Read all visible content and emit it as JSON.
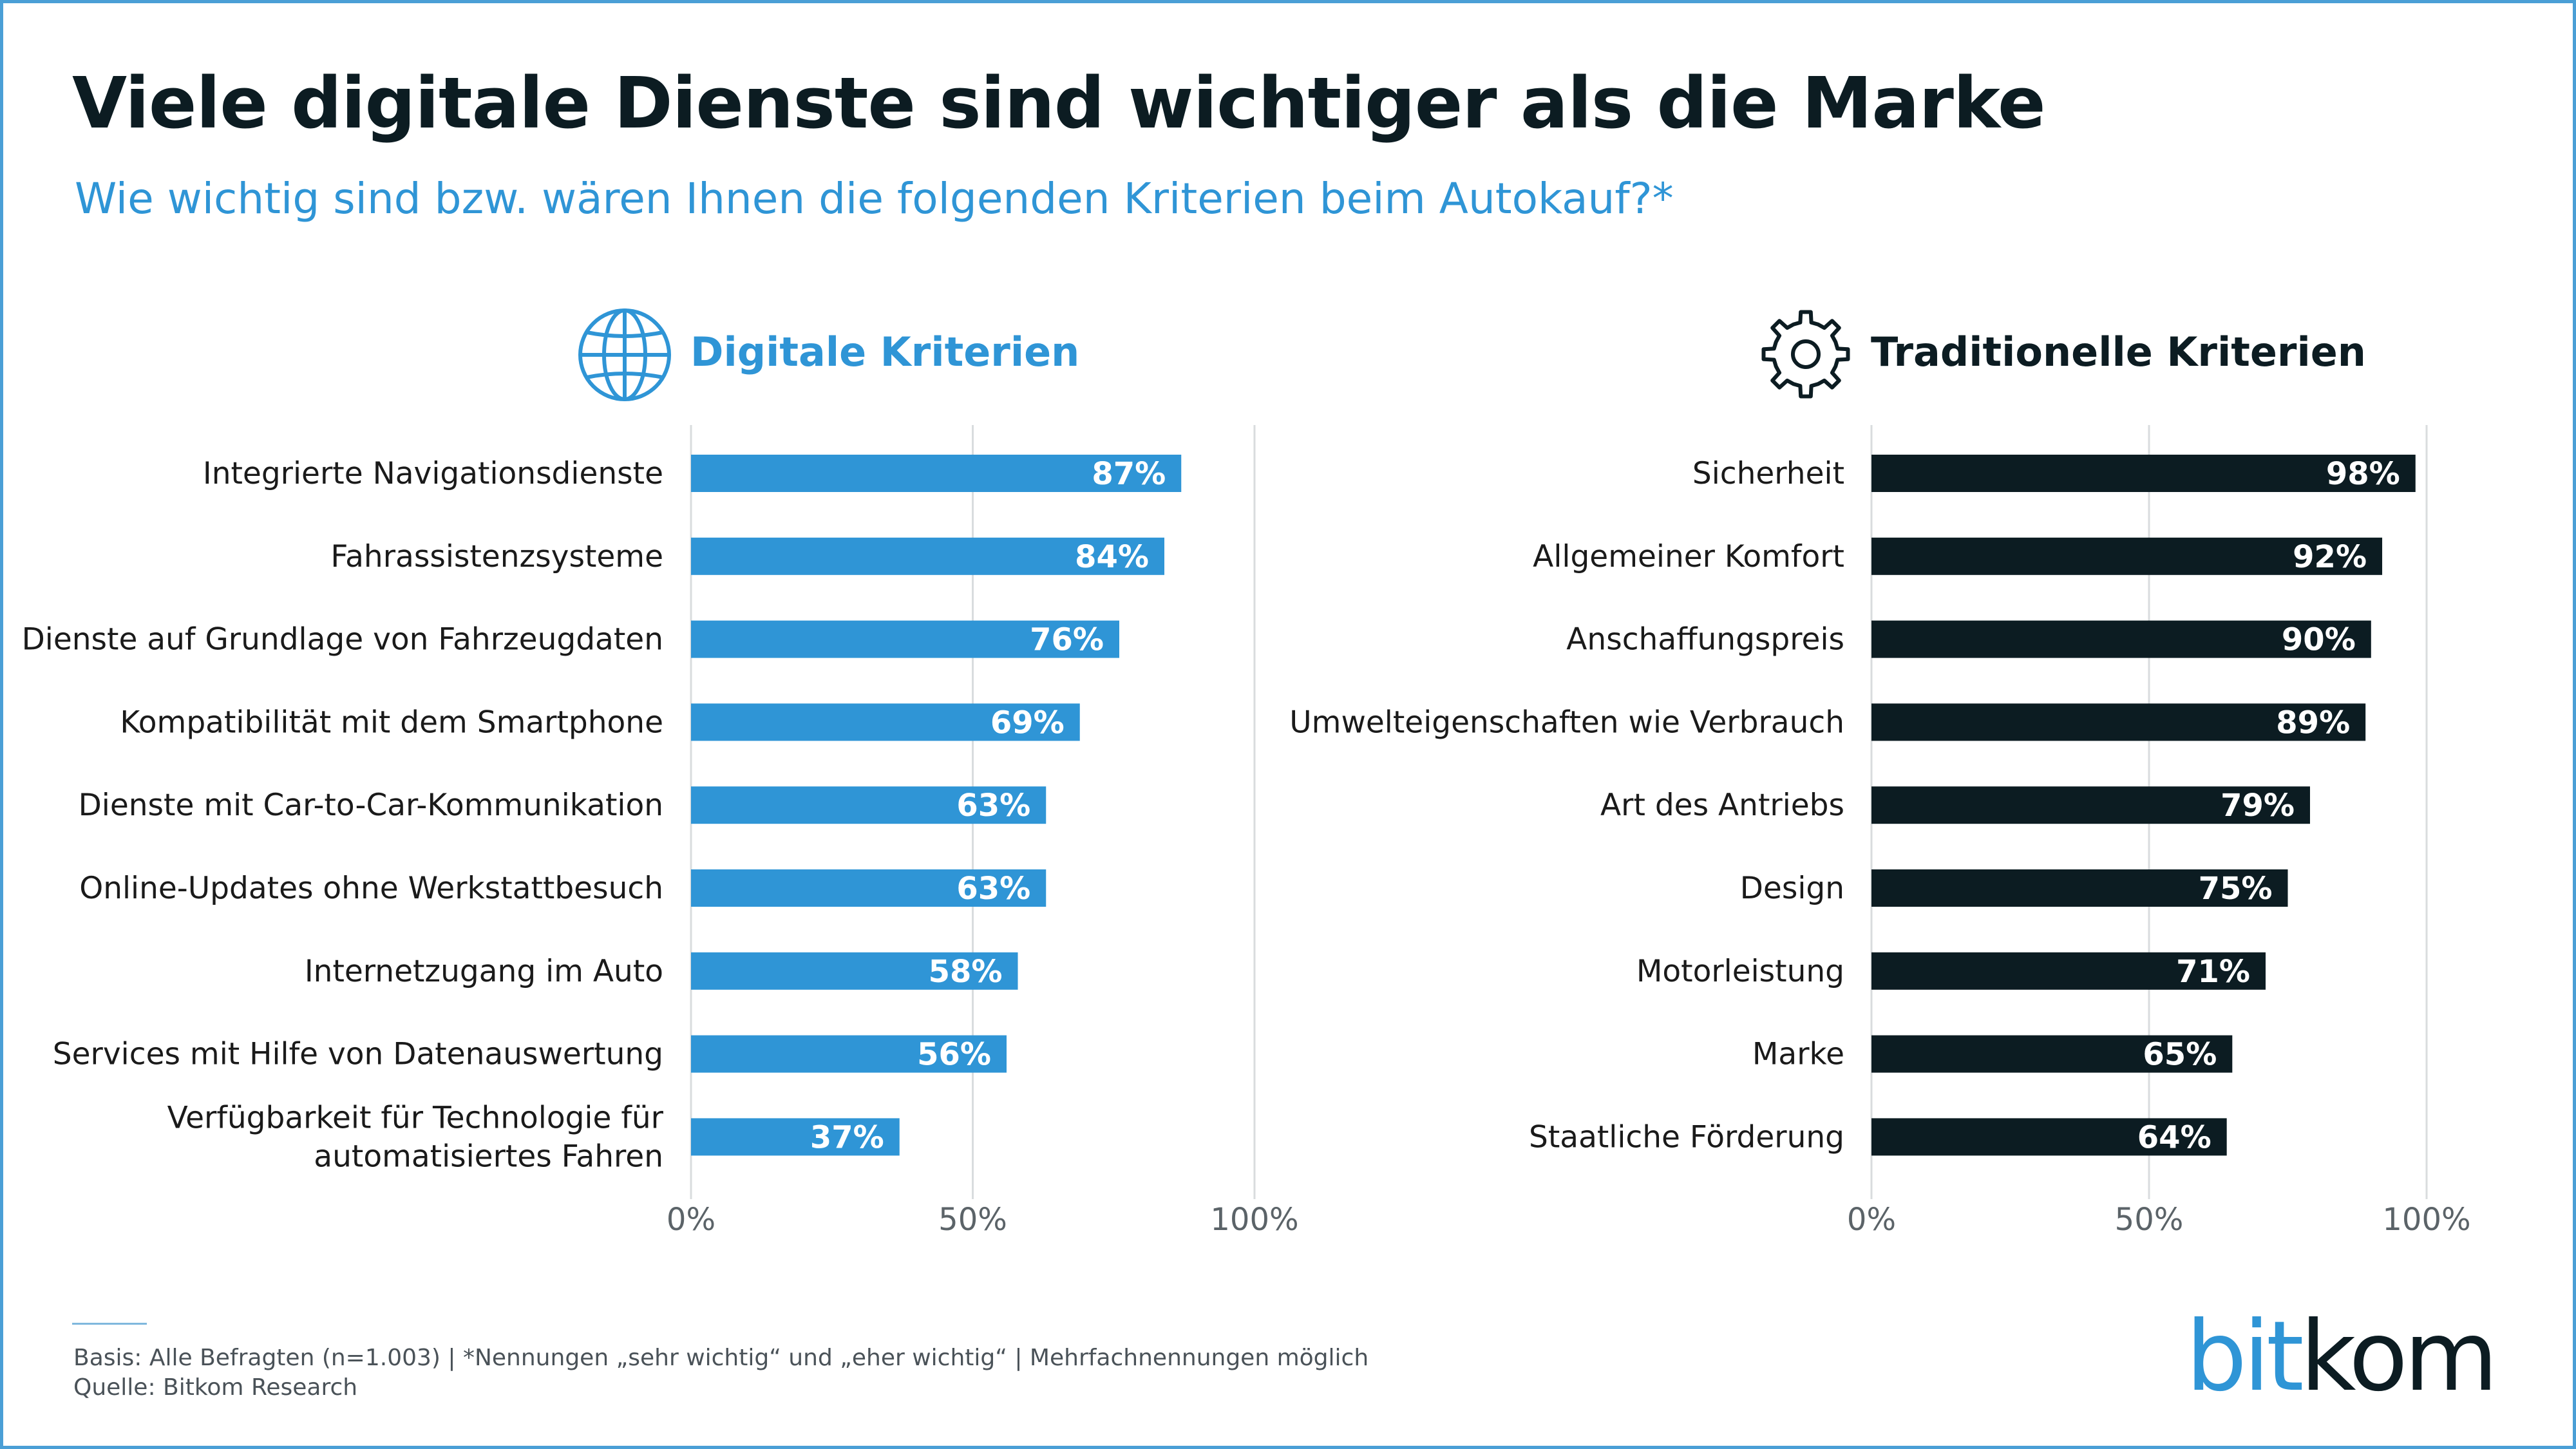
{
  "title": "Viele digitale Dienste sind wichtiger als die Marke",
  "subtitle": "Wie wichtig sind bzw. wären Ihnen die folgenden Kriterien beim Autokauf?*",
  "colors": {
    "digital": "#2f95d6",
    "traditional": "#0c1c22",
    "grid": "#d9dcde",
    "label_text": "#1a1a1a",
    "axis_text": "#5b6368",
    "border": "#4a9fd6"
  },
  "icons": {
    "digital": "globe-icon",
    "traditional": "gear-icon"
  },
  "chart_data": [
    {
      "type": "bar",
      "orientation": "horizontal",
      "title": "Digitale Kriterien",
      "color": "#2f95d6",
      "categories": [
        "Integrierte Navigationsdienste",
        "Fahrassistenzsysteme",
        "Dienste auf Grundlage von Fahrzeugdaten",
        "Kompatibilität mit dem Smartphone",
        "Dienste mit Car-to-Car-Kommunikation",
        "Online-Updates ohne Werkstattbesuch",
        "Internetzugang im Auto",
        "Services mit Hilfe von Datenauswertung",
        "Verfügbarkeit für Technologie für automatisiertes Fahren"
      ],
      "category_lines": [
        [
          "Integrierte Navigationsdienste"
        ],
        [
          "Fahrassistenzsysteme"
        ],
        [
          "Dienste auf Grundlage von Fahrzeugdaten"
        ],
        [
          "Kompatibilität mit dem Smartphone"
        ],
        [
          "Dienste mit Car-to-Car-Kommunikation"
        ],
        [
          "Online-Updates ohne Werkstattbesuch"
        ],
        [
          "Internetzugang im Auto"
        ],
        [
          "Services mit Hilfe von Datenauswertung"
        ],
        [
          "Verfügbarkeit für Technologie für",
          "automatisiertes Fahren"
        ]
      ],
      "values": [
        87,
        84,
        76,
        69,
        63,
        63,
        58,
        56,
        37
      ],
      "data_labels": [
        "87%",
        "84%",
        "76%",
        "69%",
        "63%",
        "63%",
        "58%",
        "56%",
        "37%"
      ],
      "xlim": [
        0,
        100
      ],
      "xticks": [
        0,
        50,
        100
      ],
      "xtick_labels": [
        "0%",
        "50%",
        "100%"
      ],
      "grid": true
    },
    {
      "type": "bar",
      "orientation": "horizontal",
      "title": "Traditionelle Kriterien",
      "color": "#0c1c22",
      "categories": [
        "Sicherheit",
        "Allgemeiner Komfort",
        "Anschaffungspreis",
        "Umwelteigenschaften wie Verbrauch",
        "Art des Antriebs",
        "Design",
        "Motorleistung",
        "Marke",
        "Staatliche Förderung"
      ],
      "category_lines": [
        [
          "Sicherheit"
        ],
        [
          "Allgemeiner Komfort"
        ],
        [
          "Anschaffungspreis"
        ],
        [
          "Umwelteigenschaften wie Verbrauch"
        ],
        [
          "Art des Antriebs"
        ],
        [
          "Design"
        ],
        [
          "Motorleistung"
        ],
        [
          "Marke"
        ],
        [
          "Staatliche Förderung"
        ]
      ],
      "values": [
        98,
        92,
        90,
        89,
        79,
        75,
        71,
        65,
        64
      ],
      "data_labels": [
        "98%",
        "92%",
        "90%",
        "89%",
        "79%",
        "75%",
        "71%",
        "65%",
        "64%"
      ],
      "xlim": [
        0,
        100
      ],
      "xticks": [
        0,
        50,
        100
      ],
      "xtick_labels": [
        "0%",
        "50%",
        "100%"
      ],
      "grid": true
    }
  ],
  "footer": {
    "basis": "Basis: Alle Befragten (n=1.003) | *Nennungen „sehr wichtig“ und „eher wichtig“ | Mehrfachnennungen möglich",
    "source": "Quelle: Bitkom Research"
  },
  "logo": {
    "part1": "bit",
    "part2": "kom"
  }
}
